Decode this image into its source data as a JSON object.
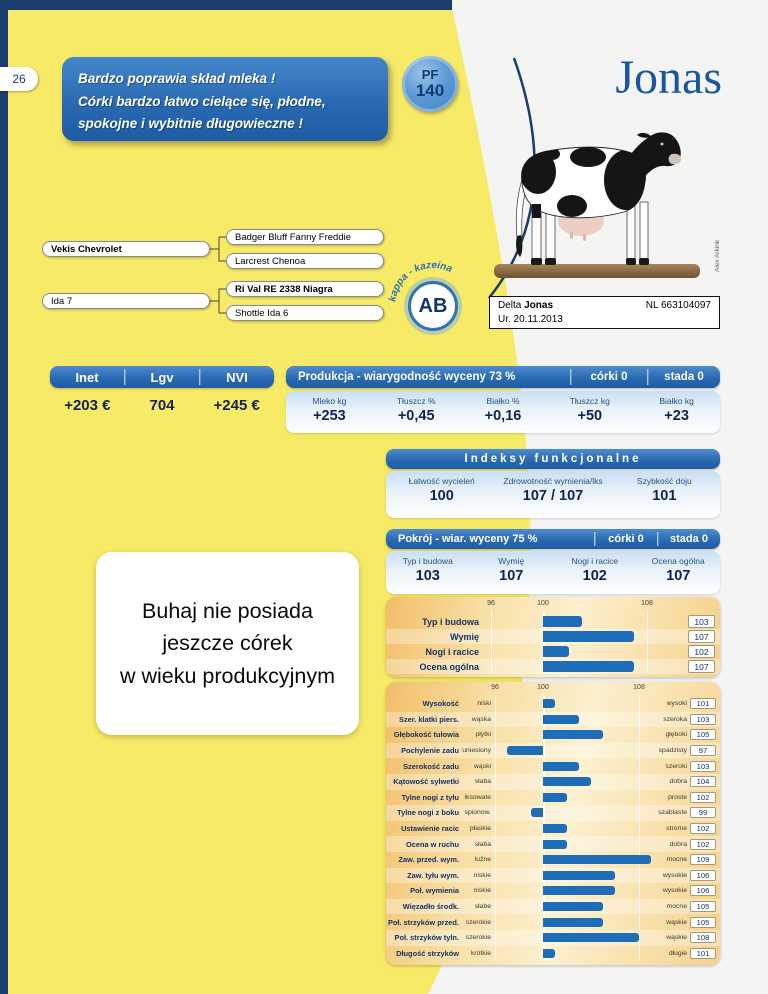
{
  "page": {
    "number": "26",
    "photo_credit": "Alex Arkink"
  },
  "header": {
    "quote_lines": [
      "Bardzo poprawia skład mleka !",
      "Córki bardzo łatwo cielące się, płodne,",
      "spokojne i wybitnie długowieczne !"
    ],
    "pf_label": "PF",
    "pf_value": "140",
    "bull_name": "Jonas"
  },
  "pedigree": {
    "sire": "Vekis Chevrolet",
    "sire_sire": "Badger Bluff Fanny Freddie",
    "sire_dam": "Larcrest Chenoa",
    "dam": "Ida 7",
    "dam_sire": "Ri Val RE 2338 Niagra",
    "dam_dam": "Shottle Ida 6"
  },
  "kappa": {
    "arc_label": "kappa - kazeina",
    "value": "AB"
  },
  "id_box": {
    "name_prefix": "Delta ",
    "name_bold": "Jonas",
    "reg_no": "NL 663104097",
    "birth_date": "Ur. 20.11.2013"
  },
  "breeding_indexes": {
    "headers": [
      "Inet",
      "Lgv",
      "NVI"
    ],
    "values": [
      "+203 €",
      "704",
      "+245 €"
    ]
  },
  "production": {
    "title": "Produkcja - wiarygodność wyceny 73 %",
    "daughters": "córki 0",
    "herds": "stada 0",
    "stats": [
      {
        "label": "Mleko kg",
        "value": "+253"
      },
      {
        "label": "Tłuszcz %",
        "value": "+0,45"
      },
      {
        "label": "Białko %",
        "value": "+0,16"
      },
      {
        "label": "Tłuszcz kg",
        "value": "+50"
      },
      {
        "label": "Białko kg",
        "value": "+23"
      }
    ]
  },
  "functional": {
    "title": "Indeksy funkcjonalne",
    "stats": [
      {
        "label": "Łatwość wycieleń",
        "value": "100"
      },
      {
        "label": "Zdrowotność wymienia/lks",
        "value": "107 / 107"
      },
      {
        "label": "Szybkość doju",
        "value": "101"
      }
    ]
  },
  "conformation": {
    "title": "Pokrój - wiar. wyceny 75 %",
    "daughters": "córki 0",
    "herds": "stada 0",
    "summary": [
      {
        "label": "Typ i budowa",
        "value": "103"
      },
      {
        "label": "Wymię",
        "value": "107"
      },
      {
        "label": "Nogi i racice",
        "value": "102"
      },
      {
        "label": "Ocena ogólna",
        "value": "107"
      }
    ]
  },
  "note_lines": [
    "Buhaj nie posiada",
    "jeszcze córek",
    "w wieku produkcyjnym"
  ],
  "chart_data": [
    {
      "type": "bar",
      "title": "Pokrój - oceny ogólne",
      "orientation": "horizontal_diverging",
      "baseline": 100,
      "axis_ticks": [
        96,
        100,
        108
      ],
      "rows": [
        {
          "label": "Typ i budowa",
          "value": 103
        },
        {
          "label": "Wymię",
          "value": 107
        },
        {
          "label": "Nogi i racice",
          "value": 102
        },
        {
          "label": "Ocena ogólna",
          "value": 107
        }
      ]
    },
    {
      "type": "bar",
      "title": "Cechy liniowe pokroju",
      "orientation": "horizontal_diverging",
      "baseline": 100,
      "axis_ticks": [
        96,
        100,
        108
      ],
      "rows": [
        {
          "label": "Wysokość",
          "low": "niski",
          "high": "wysoki",
          "value": 101
        },
        {
          "label": "Szer. klatki piers.",
          "low": "wąska",
          "high": "szeroka",
          "value": 103
        },
        {
          "label": "Głębokość tułowia",
          "low": "płytki",
          "high": "głęboki",
          "value": 105
        },
        {
          "label": "Pochylenie zadu",
          "low": "uniesiony",
          "high": "spadzisty",
          "value": 97
        },
        {
          "label": "Szerokość zadu",
          "low": "wąski",
          "high": "szeroki",
          "value": 103
        },
        {
          "label": "Kątowość sylwetki",
          "low": "słaba",
          "high": "dobra",
          "value": 104
        },
        {
          "label": "Tylne nogi z tyłu",
          "low": "iksowate",
          "high": "proste",
          "value": 102
        },
        {
          "label": "Tylne nogi z boku",
          "low": "spionow.",
          "high": "szablaste",
          "value": 99
        },
        {
          "label": "Ustawienie racic",
          "low": "płaskie",
          "high": "strome",
          "value": 102
        },
        {
          "label": "Ocena w ruchu",
          "low": "słaba",
          "high": "dobra",
          "value": 102
        },
        {
          "label": "Zaw. przed. wym.",
          "low": "luźne",
          "high": "mocne",
          "value": 109
        },
        {
          "label": "Zaw. tyłu wym.",
          "low": "niskie",
          "high": "wysokie",
          "value": 106
        },
        {
          "label": "Poł. wymienia",
          "low": "niskie",
          "high": "wysokie",
          "value": 106
        },
        {
          "label": "Więzadło środk.",
          "low": "słabe",
          "high": "mocne",
          "value": 105
        },
        {
          "label": "Poł. strzyków przed.",
          "low": "szerokie",
          "high": "wąskie",
          "value": 105
        },
        {
          "label": "Poł. strzyków tyln.",
          "low": "szerokie",
          "high": "wąskie",
          "value": 108
        },
        {
          "label": "Długość strzyków",
          "low": "krótkie",
          "high": "długie",
          "value": 101
        }
      ]
    }
  ]
}
